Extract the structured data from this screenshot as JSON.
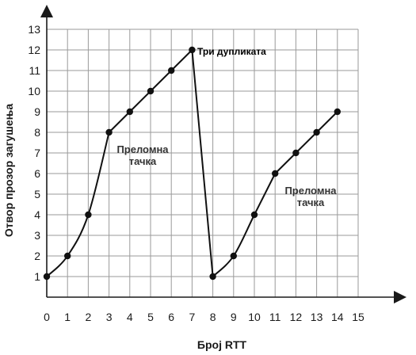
{
  "chart_data": {
    "type": "line",
    "xlabel": "Број RTT",
    "ylabel": "Отвор прозор загушења",
    "xlim": [
      0,
      15
    ],
    "ylim": [
      0,
      13
    ],
    "x_ticks": [
      "0",
      "1",
      "2",
      "3",
      "4",
      "5",
      "6",
      "7",
      "8",
      "9",
      "10",
      "11",
      "12",
      "13",
      "14",
      "15"
    ],
    "y_ticks": [
      "1",
      "2",
      "3",
      "4",
      "5",
      "6",
      "7",
      "8",
      "9",
      "10",
      "11",
      "12",
      "13"
    ],
    "grid": true,
    "series": [
      {
        "points": [
          [
            0,
            1
          ],
          [
            1,
            2
          ],
          [
            2,
            4
          ],
          [
            3,
            8
          ],
          [
            4,
            9
          ],
          [
            5,
            10
          ],
          [
            6,
            11
          ],
          [
            7,
            12
          ],
          [
            8,
            1
          ],
          [
            9,
            2
          ],
          [
            10,
            4
          ],
          [
            11,
            6
          ],
          [
            12,
            7
          ],
          [
            13,
            8
          ],
          [
            14,
            9
          ]
        ]
      }
    ],
    "annotations": [
      {
        "text": "Три дупликата"
      },
      {
        "text": "Преломна",
        "text2": "тачка"
      },
      {
        "text": "Преломна",
        "text2": "тачка"
      }
    ]
  }
}
